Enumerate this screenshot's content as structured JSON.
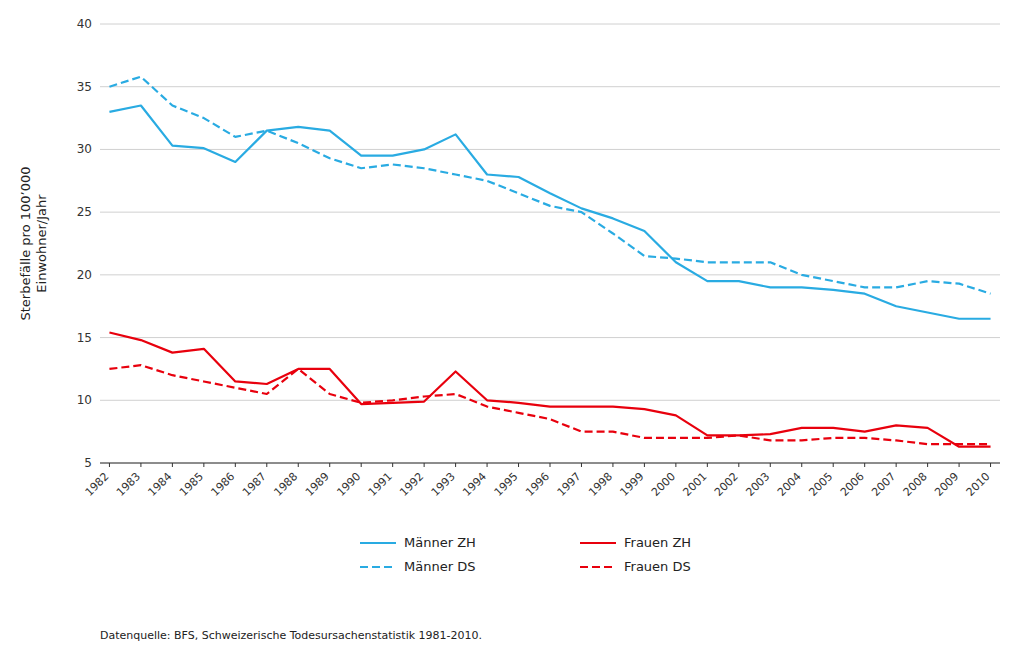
{
  "chart_data": {
    "type": "line",
    "y_label": "Sterbefälle pro 100’000\nEinwohner/Jahr",
    "annotations": [
      "Datenquelle: BFS, Schweizerische Todesursachenstatistik 1981-2010."
    ],
    "x": [
      1982,
      1983,
      1984,
      1985,
      1986,
      1987,
      1988,
      1989,
      1990,
      1991,
      1992,
      1993,
      1994,
      1995,
      1996,
      1997,
      1998,
      1999,
      2000,
      2001,
      2002,
      2003,
      2004,
      2005,
      2006,
      2007,
      2008,
      2009,
      2010
    ],
    "xlim": [
      1981.7,
      2010.3
    ],
    "xticks": [
      1982,
      1983,
      1984,
      1985,
      1986,
      1987,
      1988,
      1989,
      1990,
      1991,
      1992,
      1993,
      1994,
      1995,
      1996,
      1997,
      1998,
      1999,
      2000,
      2001,
      2002,
      2003,
      2004,
      2005,
      2006,
      2007,
      2008,
      2009,
      2010
    ],
    "ylim": [
      5,
      40
    ],
    "yticks": [
      5,
      10,
      15,
      20,
      25,
      30,
      35,
      40
    ],
    "grid": true,
    "legend": "bottom",
    "series": [
      {
        "name": "Männer ZH",
        "color": "#29ABE2",
        "line_style": "solid",
        "values": [
          33.0,
          33.5,
          30.3,
          30.1,
          29.0,
          31.5,
          31.8,
          31.5,
          29.5,
          29.5,
          30.0,
          31.2,
          28.0,
          27.8,
          26.5,
          25.3,
          24.5,
          23.5,
          21.0,
          19.5,
          19.5,
          19.0,
          19.0,
          18.8,
          18.5,
          17.5,
          17.0,
          16.5,
          16.5
        ]
      },
      {
        "name": "Männer DS",
        "color": "#29ABE2",
        "line_style": "dashed",
        "values": [
          35.0,
          35.8,
          33.5,
          32.5,
          31.0,
          31.5,
          30.5,
          29.3,
          28.5,
          28.8,
          28.5,
          28.0,
          27.5,
          26.5,
          25.5,
          25.0,
          23.3,
          21.5,
          21.3,
          21.0,
          21.0,
          21.0,
          20.0,
          19.5,
          19.0,
          19.0,
          19.5,
          19.3,
          18.5
        ]
      },
      {
        "name": "Frauen ZH",
        "color": "#E8000D",
        "line_style": "solid",
        "values": [
          15.4,
          14.8,
          13.8,
          14.1,
          11.5,
          11.3,
          12.5,
          12.5,
          9.7,
          9.8,
          9.9,
          12.3,
          10.0,
          9.8,
          9.5,
          9.5,
          9.5,
          9.3,
          8.8,
          7.2,
          7.2,
          7.3,
          7.8,
          7.8,
          7.5,
          8.0,
          7.8,
          6.3,
          6.3
        ]
      },
      {
        "name": "Frauen DS",
        "color": "#E8000D",
        "line_style": "dashed",
        "values": [
          12.5,
          12.8,
          12.0,
          11.5,
          11.0,
          10.5,
          12.5,
          10.5,
          9.8,
          10.0,
          10.3,
          10.5,
          9.5,
          9.0,
          8.5,
          7.5,
          7.5,
          7.0,
          7.0,
          7.0,
          7.2,
          6.8,
          6.8,
          7.0,
          7.0,
          6.8,
          6.5,
          6.5,
          6.5
        ]
      }
    ]
  }
}
